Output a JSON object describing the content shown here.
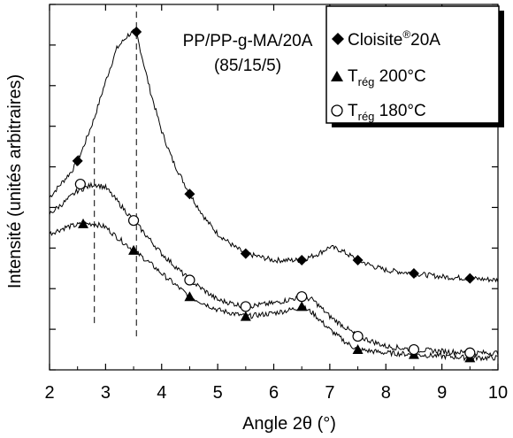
{
  "chart_data": {
    "type": "line",
    "title": "",
    "xlabel": "Angle 2θ (°)",
    "ylabel": "Intensité (unités arbitraires)",
    "xlim": [
      2,
      10
    ],
    "ylim": [
      0,
      100
    ],
    "x_ticks": [
      2,
      3,
      4,
      5,
      6,
      7,
      8,
      9,
      10
    ],
    "y_tick_labels_shown": false,
    "grid": false,
    "legend_position": "top-right",
    "annotation": {
      "line1": "PP/PP-g-MA/20A",
      "line2": "(85/15/5)"
    },
    "reference_lines": [
      {
        "x": 2.8,
        "style": "dashed",
        "from": 12,
        "to": 69
      },
      {
        "x": 3.55,
        "style": "dashed",
        "from": 8,
        "to": 100
      }
    ],
    "series": [
      {
        "name": "Cloisite®20A",
        "legend_main": "Cloisite",
        "legend_sup": "®",
        "legend_tail": "20A",
        "marker": "diamond",
        "color": "#000000",
        "x": [
          2.0,
          2.2,
          2.4,
          2.5,
          2.6,
          2.8,
          3.0,
          3.2,
          3.4,
          3.5,
          3.55,
          3.6,
          3.8,
          4.0,
          4.2,
          4.5,
          4.8,
          5.0,
          5.3,
          5.5,
          6.0,
          6.5,
          6.8,
          7.0,
          7.2,
          7.5,
          7.8,
          8.0,
          8.5,
          9.0,
          9.5,
          10.0
        ],
        "y": [
          50,
          54,
          58,
          61,
          65,
          74,
          85,
          95,
          99,
          100,
          100,
          96,
          82,
          70,
          61,
          51,
          43,
          39,
          35,
          33,
          31,
          31,
          33,
          35,
          34,
          31,
          29,
          28,
          27,
          26,
          25.5,
          25
        ],
        "markers_x": [
          2.5,
          3.55,
          4.5,
          5.5,
          6.5,
          7.5,
          8.5,
          9.5
        ],
        "markers_y": [
          61,
          100,
          51,
          33,
          31,
          31,
          27,
          25.5
        ]
      },
      {
        "name": "Tрег 200°C",
        "legend_main": "T",
        "legend_sub": "rég",
        "legend_tail": " 200°C",
        "marker": "triangle",
        "color": "#000000",
        "x": [
          2.0,
          2.3,
          2.6,
          2.8,
          3.0,
          3.2,
          3.5,
          3.8,
          4.0,
          4.5,
          5.0,
          5.5,
          6.0,
          6.3,
          6.5,
          6.7,
          7.0,
          7.3,
          7.5,
          8.0,
          8.5,
          9.0,
          9.5,
          10.0
        ],
        "y": [
          39,
          41,
          42,
          42,
          41,
          38,
          34,
          30,
          27,
          20,
          16,
          14,
          15,
          16,
          17,
          15,
          10,
          6,
          4,
          3,
          2.5,
          2,
          1.5,
          1.5
        ],
        "markers_x": [
          2.6,
          3.5,
          4.5,
          5.5,
          6.5,
          7.5,
          8.5,
          9.5
        ],
        "markers_y": [
          42,
          34,
          20,
          14,
          17,
          4,
          2.5,
          1.5
        ]
      },
      {
        "name": "Tрег 180°C",
        "legend_main": "T",
        "legend_sub": "rég",
        "legend_tail": " 180°C",
        "marker": "circle",
        "color": "#000000",
        "x": [
          2.0,
          2.3,
          2.5,
          2.8,
          3.0,
          3.2,
          3.5,
          3.8,
          4.0,
          4.5,
          5.0,
          5.5,
          6.0,
          6.5,
          6.7,
          7.0,
          7.5,
          8.0,
          8.5,
          9.0,
          9.5,
          10.0
        ],
        "y": [
          45,
          49,
          52,
          54,
          53,
          49,
          43,
          37,
          33,
          25,
          19,
          17,
          18,
          20,
          19,
          14,
          8,
          5,
          4,
          3.5,
          3,
          3
        ],
        "markers_x": [
          2.55,
          3.5,
          4.5,
          5.5,
          6.5,
          7.5,
          8.5,
          9.5
        ],
        "markers_y": [
          54,
          43,
          25,
          17,
          20,
          8,
          4,
          3
        ]
      }
    ]
  }
}
